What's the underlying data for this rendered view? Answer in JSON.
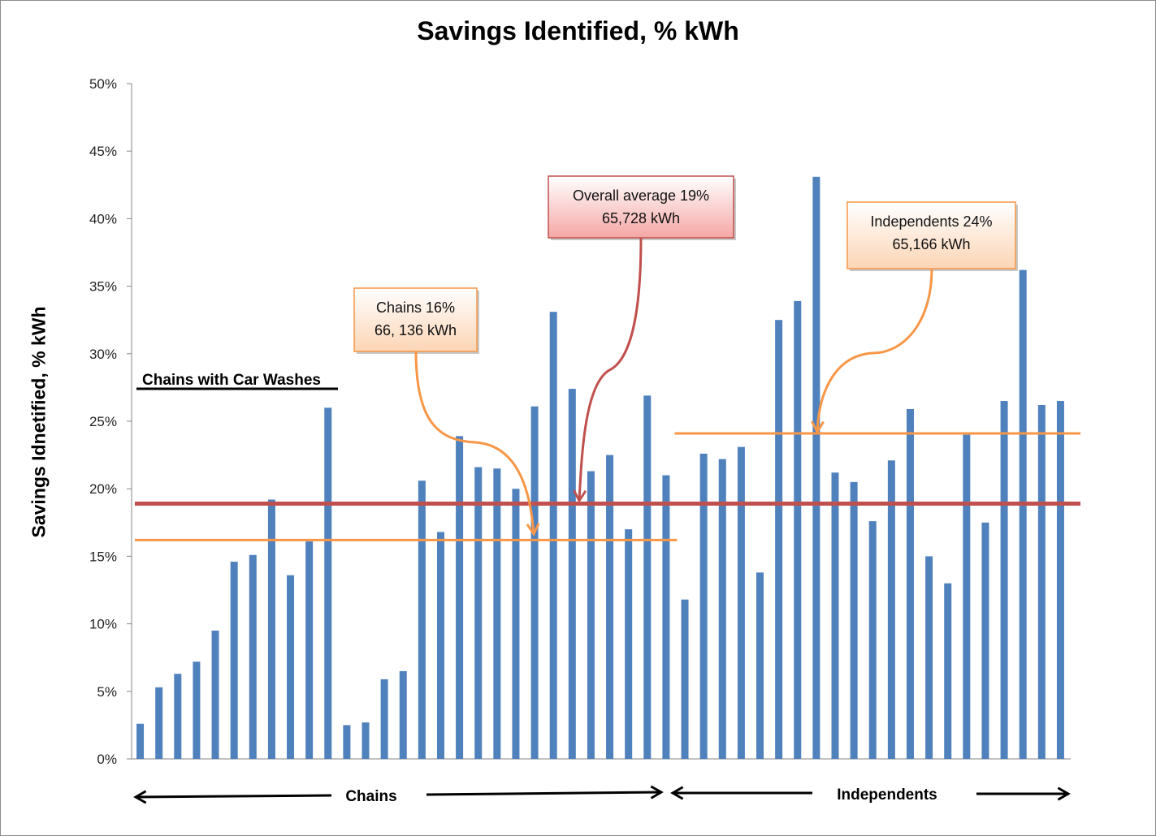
{
  "chart_data": {
    "type": "bar",
    "title": "Savings Identified, % kWh",
    "ylabel": "Savings  Idnetified, % kWh",
    "xlabel": "",
    "ylim": [
      0,
      50
    ],
    "y_ticks": [
      "0%",
      "5%",
      "10%",
      "15%",
      "20%",
      "25%",
      "30%",
      "35%",
      "40%",
      "45%",
      "50%"
    ],
    "grid": false,
    "series": [
      {
        "color": "#4f81bd",
        "values": [
          2.6,
          5.3,
          6.3,
          7.2,
          9.5,
          14.6,
          15.1,
          19.2,
          13.6,
          16.1,
          26.0,
          2.5,
          2.7,
          5.9,
          6.5,
          20.6,
          16.8,
          23.9,
          21.6,
          21.5,
          20.0,
          26.1,
          33.1,
          27.4,
          21.3,
          22.5,
          17.0,
          26.9,
          21.0,
          11.8,
          22.6,
          22.2,
          23.1,
          13.8,
          32.5,
          33.9,
          43.1,
          21.2,
          20.5,
          17.6,
          22.1,
          25.9,
          15.0,
          13.0,
          24.0,
          17.5,
          26.5,
          36.2,
          26.2,
          26.5
        ]
      }
    ],
    "reference_lines": [
      {
        "name": "Chains 16%",
        "value": 16.2,
        "color": "#f79646",
        "from_index": 0,
        "to_index": 28
      },
      {
        "name": "Overall average 19%",
        "value": 18.9,
        "color": "#c0504d",
        "from_index": 0,
        "to_index": 49
      },
      {
        "name": "Independents 24%",
        "value": 24.1,
        "color": "#f79646",
        "from_index": 29,
        "to_index": 49
      }
    ],
    "annotations": {
      "chains_box": {
        "line1": "Chains 16%",
        "line2": "66, 136 kWh"
      },
      "overall_box": {
        "line1": "Overall average 19%",
        "line2": "65,728 kWh"
      },
      "independents_box": {
        "line1": "Independents 24%",
        "line2": "65,166 kWh"
      },
      "car_wash_label": "Chains with Car Washes",
      "chains_group_label": "Chains",
      "independents_group_label": "Independents"
    },
    "colors": {
      "bar": "#4f81bd",
      "orange": "#f79646",
      "red": "#c0504d",
      "orange_box_fill": "#fcd5b5",
      "red_box_fill": "#f4a7a5"
    }
  }
}
